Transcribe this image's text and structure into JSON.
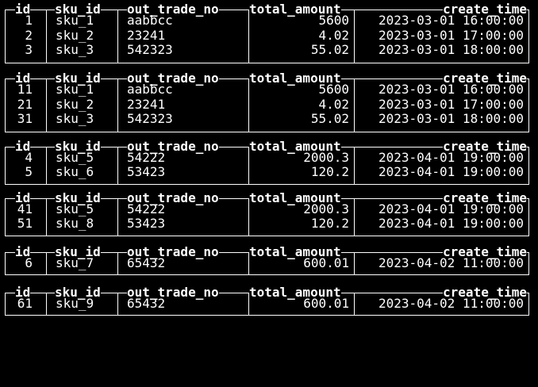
{
  "tables": [
    {
      "headers": [
        "id",
        "sku_id",
        "out_trade_no",
        "total_amount",
        "create_time"
      ],
      "rows": [
        [
          "1",
          "sku_1",
          "aabbcc",
          "5600",
          "2023-03-01 16:00:00"
        ],
        [
          "2",
          "sku_2",
          "23241",
          "4.02",
          "2023-03-01 17:00:00"
        ],
        [
          "3",
          "sku_3",
          "542323",
          "55.02",
          "2023-03-01 18:00:00"
        ]
      ]
    },
    {
      "headers": [
        "id",
        "sku_id",
        "out_trade_no",
        "total_amount",
        "create_time"
      ],
      "rows": [
        [
          "11",
          "sku_1",
          "aabbcc",
          "5600",
          "2023-03-01 16:00:00"
        ],
        [
          "21",
          "sku_2",
          "23241",
          "4.02",
          "2023-03-01 17:00:00"
        ],
        [
          "31",
          "sku_3",
          "542323",
          "55.02",
          "2023-03-01 18:00:00"
        ]
      ]
    },
    {
      "headers": [
        "id",
        "sku_id",
        "out_trade_no",
        "total_amount",
        "create_time"
      ],
      "rows": [
        [
          "4",
          "sku_5",
          "54222",
          "2000.3",
          "2023-04-01 19:00:00"
        ],
        [
          "5",
          "sku_6",
          "53423",
          "120.2",
          "2023-04-01 19:00:00"
        ]
      ]
    },
    {
      "headers": [
        "id",
        "sku_id",
        "out_trade_no",
        "total_amount",
        "create_time"
      ],
      "rows": [
        [
          "41",
          "sku_5",
          "54222",
          "2000.3",
          "2023-04-01 19:00:00"
        ],
        [
          "51",
          "sku_8",
          "53423",
          "120.2",
          "2023-04-01 19:00:00"
        ]
      ]
    },
    {
      "headers": [
        "id",
        "sku_id",
        "out_trade_no",
        "total_amount",
        "create_time"
      ],
      "rows": [
        [
          "6",
          "sku_7",
          "65432",
          "600.01",
          "2023-04-02 11:00:00"
        ]
      ]
    },
    {
      "headers": [
        "id",
        "sku_id",
        "out_trade_no",
        "total_amount",
        "create_time"
      ],
      "rows": [
        [
          "61",
          "sku_9",
          "65432",
          "600.01",
          "2023-04-02 11:00:00"
        ]
      ]
    }
  ],
  "colors": {
    "background": "#000000",
    "foreground": "#ffffff"
  }
}
